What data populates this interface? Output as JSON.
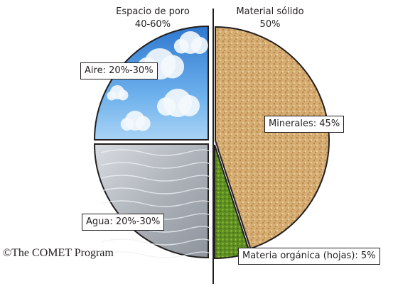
{
  "chart_data": {
    "type": "pie",
    "slices": [
      {
        "label": "Aire: 20%-30%",
        "category": "Aire",
        "range": [
          20,
          30
        ],
        "value": 25,
        "group": "pore",
        "color": "#5a9fe0"
      },
      {
        "label": "Agua: 20%-30%",
        "category": "Agua",
        "range": [
          20,
          30
        ],
        "value": 25,
        "group": "pore",
        "color": "#b8bcc2"
      },
      {
        "label": "Materia orgánica (hojas): 5%",
        "category": "Materia orgánica (hojas)",
        "value": 5,
        "group": "solid",
        "color": "#6c9a2a"
      },
      {
        "label": "Minerales: 45%",
        "category": "Minerales",
        "value": 45,
        "group": "solid",
        "color": "#d3a96c"
      }
    ],
    "groups": {
      "pore": {
        "title": "Espacio de poro",
        "value_text": "40-60%"
      },
      "solid": {
        "title": "Material sólido",
        "value_text": "50%"
      }
    }
  },
  "credit": "©The COMET Program"
}
